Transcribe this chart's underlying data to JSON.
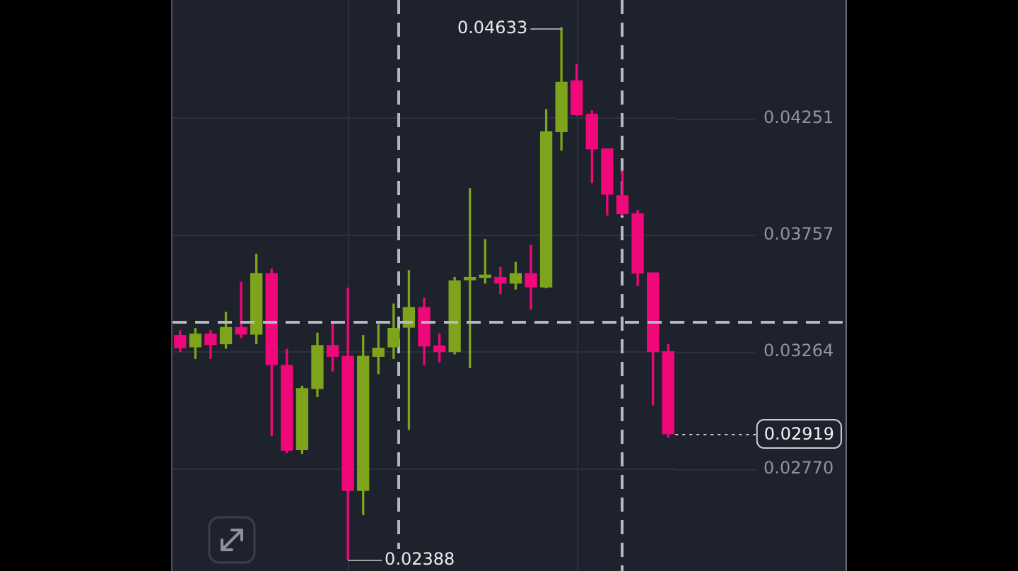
{
  "chart_data": {
    "type": "candlestick",
    "categories": [
      null,
      null,
      null,
      null,
      null,
      null,
      null,
      null,
      null,
      null,
      null,
      null,
      null,
      null,
      null,
      null,
      null,
      null,
      null,
      null,
      null,
      null,
      null,
      null,
      null,
      null,
      null,
      null,
      null,
      null,
      null,
      null,
      null
    ],
    "ohlc": [
      [
        0.03334,
        0.03354,
        0.03266,
        0.03282
      ],
      [
        0.03286,
        0.03364,
        0.03237,
        0.0334
      ],
      [
        0.0334,
        0.03354,
        0.03237,
        0.03296
      ],
      [
        0.03299,
        0.03432,
        0.0328,
        0.03368
      ],
      [
        0.03368,
        0.03559,
        0.03325,
        0.0334
      ],
      [
        0.0334,
        0.03677,
        0.03299,
        0.03595
      ],
      [
        0.03595,
        0.03614,
        0.02911,
        0.03211
      ],
      [
        0.03208,
        0.03276,
        0.0284,
        0.0285
      ],
      [
        0.02852,
        0.0312,
        0.02836,
        0.0311
      ],
      [
        0.0311,
        0.03344,
        0.03076,
        0.03292
      ],
      [
        0.03292,
        0.03393,
        0.03184,
        0.03246
      ],
      [
        0.03246,
        0.03534,
        0.02388,
        0.0268
      ],
      [
        0.0268,
        0.03334,
        0.02578,
        0.03246
      ],
      [
        0.03246,
        0.03379,
        0.03173,
        0.0328
      ],
      [
        0.03286,
        0.03467,
        0.03237,
        0.03364
      ],
      [
        0.03369,
        0.03608,
        0.02938,
        0.03452
      ],
      [
        0.03452,
        0.03491,
        0.03211,
        0.0329
      ],
      [
        0.0329,
        0.0334,
        0.03223,
        0.03266
      ],
      [
        0.03266,
        0.03579,
        0.03256,
        0.03565
      ],
      [
        0.03569,
        0.03954,
        0.03198,
        0.03579
      ],
      [
        0.03579,
        0.03739,
        0.03555,
        0.03589
      ],
      [
        0.03579,
        0.03621,
        0.0351,
        0.03555
      ],
      [
        0.03555,
        0.03643,
        0.0353,
        0.03595
      ],
      [
        0.03595,
        0.03715,
        0.03446,
        0.03539
      ],
      [
        0.03539,
        0.04288,
        0.03535,
        0.04194
      ],
      [
        0.04194,
        0.04633,
        0.04116,
        0.04403
      ],
      [
        0.04409,
        0.04477,
        0.04263,
        0.04266
      ],
      [
        0.04268,
        0.04282,
        0.03979,
        0.04122
      ],
      [
        0.04122,
        0.04122,
        0.03842,
        0.0393
      ],
      [
        0.03924,
        0.04028,
        0.03842,
        0.03848
      ],
      [
        0.03848,
        0.03862,
        0.03544,
        0.03598
      ],
      [
        0.03598,
        0.03598,
        0.03041,
        0.03266
      ],
      [
        0.03266,
        0.03296,
        0.02905,
        0.02919
      ]
    ],
    "colors": [
      "#f0077a",
      "#7ea41c",
      "#f0077a",
      "#7ea41c",
      "#f0077a",
      "#7ea41c",
      "#f0077a",
      "#f0077a",
      "#7ea41c",
      "#7ea41c",
      "#f0077a",
      "#f0077a",
      "#7ea41c",
      "#7ea41c",
      "#7ea41c",
      "#7ea41c",
      "#f0077a",
      "#f0077a",
      "#7ea41c",
      "#7ea41c",
      "#7ea41c",
      "#f0077a",
      "#7ea41c",
      "#f0077a",
      "#7ea41c",
      "#7ea41c",
      "#f0077a",
      "#f0077a",
      "#f0077a",
      "#f0077a",
      "#f0077a",
      "#f0077a",
      "#f0077a"
    ],
    "ylim": [
      0.0234,
      0.0475
    ],
    "yticks": [
      {
        "value": 0.0277,
        "label": "0.02770"
      },
      0.03264,
      0.03757,
      0.04251
    ],
    "grid": "y",
    "ref_lines": [
      {
        "axis": "y",
        "value": 0.03389,
        "line_style": "dashed",
        "color": "#b4b8bf"
      },
      {
        "axis": "y",
        "value": 0.02919,
        "label": "0.02919",
        "line_style": "dotted",
        "color": "#c8ccd3"
      }
    ],
    "annotations": [
      "0.04633",
      "0.02388"
    ]
  }
}
